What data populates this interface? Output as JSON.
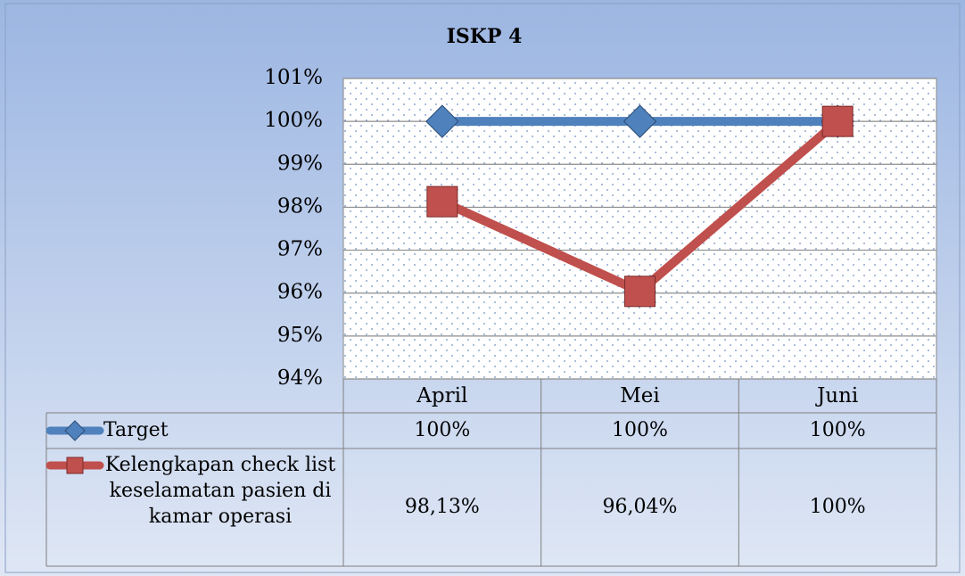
{
  "chart_data": {
    "type": "line",
    "title": "ISKP 4",
    "categories": [
      "April",
      "Mei",
      "Juni"
    ],
    "series": [
      {
        "name": "Target",
        "color": "#4f81bd",
        "marker": "diamond",
        "values": [
          100,
          100,
          100
        ],
        "value_labels": [
          "100%",
          "100%",
          "100%"
        ]
      },
      {
        "name": "Kelengkapan check list keselamatan pasien di kamar operasi",
        "color": "#c0504d",
        "marker": "square",
        "values": [
          98.13,
          96.04,
          100
        ],
        "value_labels": [
          "98,13%",
          "96,04%",
          "100%"
        ]
      }
    ],
    "ylim": [
      94,
      101
    ],
    "yticks": [
      {
        "value": 94,
        "label": "94%"
      },
      {
        "value": 95,
        "label": "95%"
      },
      {
        "value": 96,
        "label": "96%"
      },
      {
        "value": 97,
        "label": "97%"
      },
      {
        "value": 98,
        "label": "98%"
      },
      {
        "value": 99,
        "label": "99%"
      },
      {
        "value": 100,
        "label": "100%"
      },
      {
        "value": 101,
        "label": "101%"
      }
    ],
    "grid": true
  }
}
